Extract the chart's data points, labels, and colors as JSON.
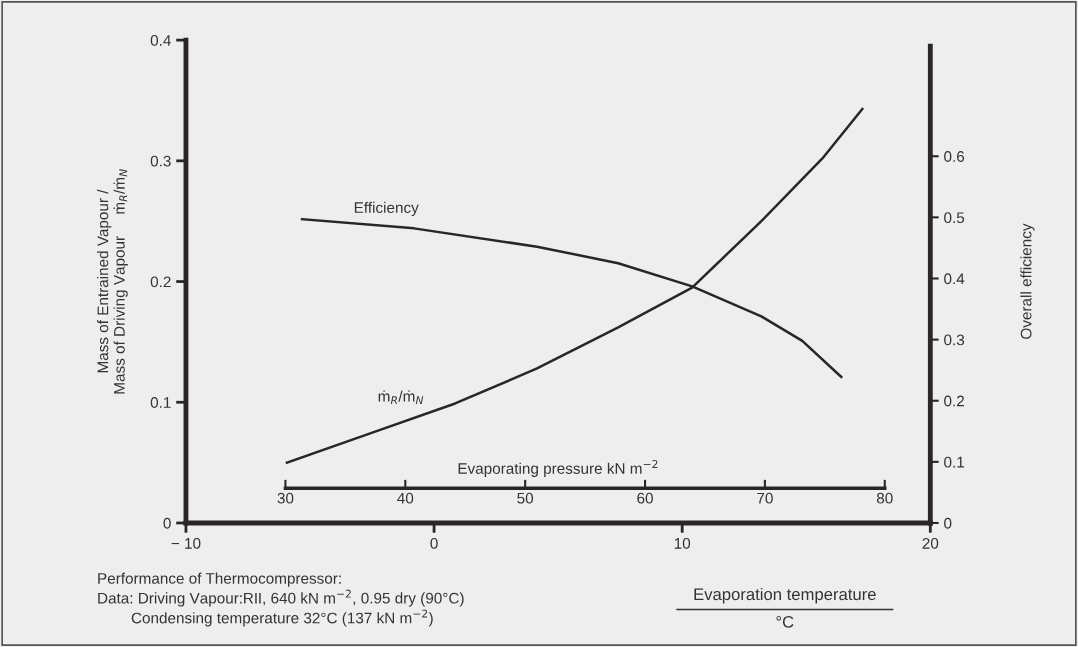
{
  "chart_data": {
    "type": "line",
    "xlabel": "Evaporation temperature\n°C",
    "ylabel": "Mass of Entrained Vapour /\nMass of Driving Vapour     ṁ$_{R}$/ṁ$_{N}$",
    "y2label": "Overall efficiency",
    "x2label": "Evaporating pressure kN m$^{−2}$",
    "xlim": [
      -10,
      20
    ],
    "xticks": [
      {
        "value": -10,
        "label": "− 10"
      },
      0,
      10,
      20
    ],
    "ylim": [
      0,
      0.4
    ],
    "yticks": [
      0,
      0.1,
      0.2,
      0.3,
      0.4
    ],
    "y2lim": [
      0,
      0.79
    ],
    "y2ticks": [
      0,
      0.1,
      0.2,
      0.3,
      0.4,
      0.5,
      0.6
    ],
    "x2lim": [
      21.7,
      83.8
    ],
    "x2ticks": [
      30,
      40,
      50,
      60,
      70,
      80
    ],
    "grid": false,
    "legend": false,
    "marker": "none",
    "line_style": "solid",
    "series": [
      {
        "name": "ṁ$_{R}$/ṁ$_{N}$",
        "color": "#2a2626",
        "x": [
          -5.93,
          -2.46,
          0.85,
          4.15,
          7.42,
          10.4,
          13.19,
          15.65,
          17.26
        ],
        "values": [
          0.05,
          0.075,
          0.099,
          0.128,
          0.162,
          0.195,
          0.25,
          0.302,
          0.343
        ]
      },
      {
        "name": "Efficiency",
        "color": "#2a2626",
        "axis": "y2",
        "x": [
          -5.32,
          -0.81,
          4.15,
          7.42,
          10.4,
          13.19,
          14.84,
          16.41
        ],
        "values": [
          0.497,
          0.482,
          0.452,
          0.425,
          0.387,
          0.338,
          0.298,
          0.239
        ]
      }
    ],
    "annotations": [
      "Performance of Thermocompressor:\nData: Driving Vapour:RII, 640 kN m$^{−2}$, 0.95 dry (90°C)\n        Condensing temperature 32°C (137 kN m$^{−2}$)"
    ]
  }
}
